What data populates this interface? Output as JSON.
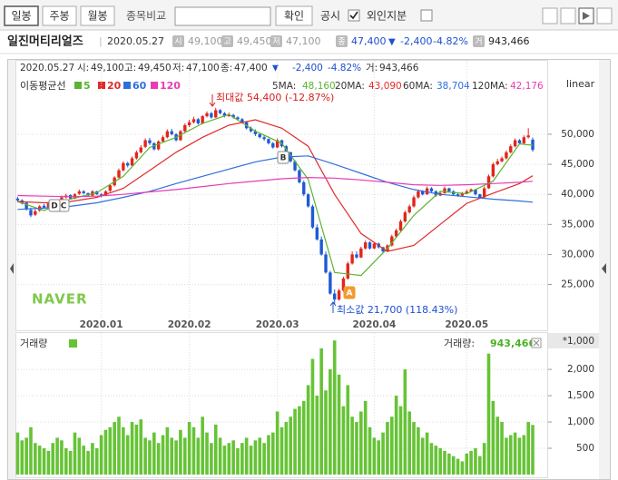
{
  "toolbar": {
    "buttons": [
      "일봉",
      "주봉",
      "월봉"
    ],
    "compare_label": "종목비교",
    "confirm": "확인",
    "disclosure": "공시",
    "foreign": "외인지분"
  },
  "info": {
    "name": "일진머티리얼즈",
    "date": "2020.05.27",
    "items": [
      {
        "icon": "시",
        "value": "49,100"
      },
      {
        "icon": "고",
        "value": "49,450"
      },
      {
        "icon": "저",
        "value": "47,100"
      },
      {
        "icon": "종",
        "value": "47,400"
      }
    ],
    "sign": "▼",
    "change": "-2,400",
    "rate": "-4.82%",
    "volume_icon": "거",
    "volume": "943,466"
  },
  "logo": "NAVER",
  "chart_data": [
    {
      "type": "candlestick",
      "header": {
        "date": "2020.05.27",
        "items": [
          {
            "label": "시:",
            "value": "49,100"
          },
          {
            "label": "고:",
            "value": "49,450"
          },
          {
            "label": "저:",
            "value": "47,100"
          },
          {
            "label": "종:",
            "value": "47,400"
          }
        ],
        "sign": "▼",
        "change": "-2,400",
        "rate": "-4.82%",
        "volume_label": "거:",
        "volume": "943,466"
      },
      "legend_title": "이동평균선",
      "scale_label": "linear",
      "up_color": "#e3251b",
      "down_color": "#1e5ad6",
      "grid": true,
      "xlim": [
        -0.5,
        120.5
      ],
      "xticks": [
        {
          "value": 19,
          "label": "2020.01"
        },
        {
          "value": 39,
          "label": "2020.02"
        },
        {
          "value": 59,
          "label": "2020.03"
        },
        {
          "value": 81,
          "label": "2020.04"
        },
        {
          "value": 102,
          "label": "2020.05"
        }
      ],
      "ylim": [
        19500,
        59500
      ],
      "yticks": [
        {
          "value": 25000,
          "label": "25,000"
        },
        {
          "value": 30000,
          "label": "30,000"
        },
        {
          "value": 35000,
          "label": "35,000"
        },
        {
          "value": 40000,
          "label": "40,000"
        },
        {
          "value": 45000,
          "label": "45,000"
        },
        {
          "value": 50000,
          "label": "50,000"
        }
      ],
      "ohlc": [
        [
          39300,
          39600,
          38700,
          39000
        ],
        [
          39000,
          39200,
          38300,
          38500
        ],
        [
          38600,
          38800,
          37300,
          37500
        ],
        [
          37400,
          37800,
          36200,
          36500
        ],
        [
          36600,
          37500,
          36400,
          37200
        ],
        [
          37300,
          38200,
          37100,
          38000
        ],
        [
          38100,
          38400,
          37600,
          37800
        ],
        [
          37700,
          38700,
          37600,
          38500
        ],
        [
          38500,
          38900,
          38100,
          38300
        ],
        [
          38300,
          39200,
          38200,
          39000
        ],
        [
          39100,
          39800,
          38900,
          39500
        ],
        [
          39500,
          40100,
          39300,
          39800
        ],
        [
          39900,
          40000,
          39100,
          39300
        ],
        [
          39300,
          40200,
          39200,
          40000
        ],
        [
          40100,
          40800,
          39900,
          40500
        ],
        [
          40500,
          40700,
          40000,
          40200
        ],
        [
          40200,
          40300,
          39600,
          39800
        ],
        [
          39800,
          40700,
          39700,
          40500
        ],
        [
          40500,
          40600,
          39900,
          40000
        ],
        [
          40000,
          40200,
          39500,
          39800
        ],
        [
          39800,
          40700,
          39700,
          40500
        ],
        [
          40600,
          41700,
          40400,
          41500
        ],
        [
          41500,
          43000,
          41300,
          42800
        ],
        [
          42800,
          44300,
          42600,
          44000
        ],
        [
          44000,
          45500,
          43800,
          45200
        ],
        [
          45200,
          45400,
          44500,
          44800
        ],
        [
          44800,
          46300,
          44700,
          46000
        ],
        [
          46000,
          47300,
          45800,
          47000
        ],
        [
          47000,
          48200,
          46800,
          47800
        ],
        [
          47900,
          49300,
          47700,
          49000
        ],
        [
          49000,
          49400,
          48200,
          48500
        ],
        [
          48500,
          48700,
          47300,
          47500
        ],
        [
          47500,
          49000,
          47300,
          48800
        ],
        [
          48800,
          49800,
          48600,
          49500
        ],
        [
          49500,
          50800,
          49300,
          50500
        ],
        [
          50500,
          50900,
          49800,
          50000
        ],
        [
          50000,
          50200,
          48800,
          49000
        ],
        [
          49000,
          50700,
          48900,
          50500
        ],
        [
          50500,
          51800,
          50300,
          51500
        ],
        [
          51500,
          52400,
          51200,
          52000
        ],
        [
          52000,
          52900,
          51800,
          52500
        ],
        [
          52500,
          52700,
          51600,
          51800
        ],
        [
          51800,
          53200,
          51700,
          53000
        ],
        [
          53000,
          53800,
          52800,
          53500
        ],
        [
          53500,
          53700,
          52600,
          52800
        ],
        [
          52800,
          54400,
          52700,
          54000
        ],
        [
          54000,
          54200,
          53300,
          53500
        ],
        [
          53500,
          53700,
          52800,
          53000
        ],
        [
          53000,
          53600,
          52900,
          53200
        ],
        [
          53200,
          53400,
          52600,
          52800
        ],
        [
          52800,
          53000,
          52300,
          52500
        ],
        [
          52500,
          52700,
          51800,
          52000
        ],
        [
          52000,
          52100,
          50800,
          51000
        ],
        [
          51000,
          51300,
          50300,
          50500
        ],
        [
          50500,
          50800,
          49700,
          50000
        ],
        [
          50000,
          50200,
          49300,
          49500
        ],
        [
          49500,
          49800,
          48900,
          49200
        ],
        [
          49200,
          49300,
          48300,
          48500
        ],
        [
          48500,
          48700,
          47600,
          47800
        ],
        [
          47800,
          49300,
          47700,
          49000
        ],
        [
          49000,
          49100,
          47800,
          48000
        ],
        [
          48000,
          48200,
          46800,
          47000
        ],
        [
          47000,
          47100,
          45300,
          45500
        ],
        [
          45500,
          45700,
          43800,
          44000
        ],
        [
          44000,
          44200,
          41800,
          42000
        ],
        [
          42000,
          42300,
          39700,
          40000
        ],
        [
          40000,
          40200,
          37800,
          38000
        ],
        [
          38000,
          38300,
          34300,
          34500
        ],
        [
          34500,
          35000,
          32300,
          32500
        ],
        [
          32500,
          33000,
          29800,
          30000
        ],
        [
          30000,
          30500,
          26800,
          27000
        ],
        [
          27000,
          27300,
          23300,
          23500
        ],
        [
          23500,
          24200,
          21700,
          22500
        ],
        [
          22500,
          24300,
          22300,
          24000
        ],
        [
          24000,
          26300,
          23800,
          26000
        ],
        [
          26000,
          28800,
          25800,
          28500
        ],
        [
          28500,
          30500,
          28300,
          30000
        ],
        [
          30000,
          30500,
          29300,
          29500
        ],
        [
          29500,
          31300,
          29400,
          31000
        ],
        [
          31000,
          32300,
          30800,
          32000
        ],
        [
          32000,
          32200,
          30800,
          31000
        ],
        [
          31000,
          32000,
          30900,
          31800
        ],
        [
          31800,
          32000,
          31000,
          31200
        ],
        [
          31200,
          31300,
          30300,
          30500
        ],
        [
          30500,
          31700,
          30400,
          31500
        ],
        [
          31500,
          33300,
          31300,
          33000
        ],
        [
          33000,
          34300,
          32800,
          34000
        ],
        [
          34000,
          35800,
          33800,
          35500
        ],
        [
          35500,
          37300,
          35300,
          37000
        ],
        [
          37000,
          38300,
          36800,
          38000
        ],
        [
          38000,
          39800,
          37800,
          39500
        ],
        [
          39500,
          40800,
          39300,
          40500
        ],
        [
          40500,
          40700,
          39800,
          40000
        ],
        [
          40000,
          41300,
          39900,
          41000
        ],
        [
          41000,
          41200,
          40300,
          40500
        ],
        [
          40500,
          40700,
          39600,
          39800
        ],
        [
          39800,
          40500,
          39700,
          40200
        ],
        [
          40200,
          41300,
          40100,
          41000
        ],
        [
          41000,
          41100,
          40300,
          40500
        ],
        [
          40500,
          40700,
          39800,
          40000
        ],
        [
          40000,
          40200,
          39600,
          39800
        ],
        [
          39800,
          40400,
          39700,
          40200
        ],
        [
          40200,
          40800,
          40100,
          40500
        ],
        [
          40500,
          41000,
          40400,
          40800
        ],
        [
          40800,
          40900,
          39800,
          40000
        ],
        [
          40000,
          40100,
          39300,
          39500
        ],
        [
          39500,
          41300,
          39400,
          41000
        ],
        [
          41000,
          43300,
          40900,
          43000
        ],
        [
          43000,
          45300,
          42800,
          45000
        ],
        [
          45000,
          45900,
          44800,
          45500
        ],
        [
          45500,
          46300,
          45300,
          46000
        ],
        [
          46000,
          47300,
          45800,
          47000
        ],
        [
          47000,
          48300,
          46800,
          48000
        ],
        [
          48000,
          49300,
          47800,
          49000
        ],
        [
          49000,
          49200,
          48300,
          48500
        ],
        [
          48500,
          49800,
          48300,
          49500
        ],
        [
          49500,
          51000,
          49300,
          49800
        ],
        [
          49100,
          49450,
          47100,
          47400
        ]
      ],
      "series": [
        {
          "name": "5",
          "color": "#5bb431",
          "readout_label": "5MA:",
          "readout": "48,160",
          "x": [
            0,
            6,
            12,
            18,
            24,
            30,
            36,
            42,
            48,
            54,
            60,
            66,
            72,
            78,
            84,
            90,
            96,
            102,
            108,
            114,
            117
          ],
          "values": [
            38800,
            37300,
            39200,
            40300,
            43000,
            47800,
            49500,
            51800,
            53300,
            50500,
            48500,
            42500,
            27000,
            26500,
            31000,
            36500,
            40500,
            40100,
            42200,
            48400,
            48160
          ]
        },
        {
          "name": "20",
          "color": "#e02b2b",
          "readout_label": "20MA:",
          "readout": "43,090",
          "x": [
            0,
            6,
            12,
            18,
            24,
            30,
            36,
            42,
            48,
            54,
            60,
            66,
            72,
            78,
            84,
            90,
            96,
            102,
            108,
            114,
            117
          ],
          "values": [
            38800,
            38600,
            38800,
            39500,
            41000,
            44000,
            47000,
            49500,
            51500,
            52400,
            51000,
            48000,
            40000,
            33500,
            30500,
            31500,
            35000,
            38500,
            40200,
            41800,
            43090
          ]
        },
        {
          "name": "60",
          "color": "#2f6fdc",
          "readout_label": "60MA:",
          "readout": "38,704",
          "x": [
            0,
            6,
            12,
            18,
            24,
            30,
            36,
            42,
            48,
            54,
            60,
            66,
            72,
            78,
            84,
            90,
            96,
            102,
            108,
            114,
            117
          ],
          "values": [
            37500,
            37700,
            38000,
            38600,
            39500,
            40500,
            41800,
            43000,
            44200,
            45400,
            46200,
            46400,
            45000,
            43500,
            42000,
            40800,
            40000,
            39600,
            39200,
            38900,
            38704
          ]
        },
        {
          "name": "120",
          "color": "#e83cb4",
          "readout_label": "120MA:",
          "readout": "42,176",
          "x": [
            0,
            6,
            12,
            18,
            24,
            30,
            36,
            42,
            48,
            54,
            60,
            66,
            72,
            78,
            84,
            90,
            96,
            102,
            108,
            114,
            117
          ],
          "values": [
            39800,
            39700,
            39600,
            39700,
            40000,
            40400,
            40800,
            41300,
            41800,
            42200,
            42600,
            42800,
            42700,
            42400,
            42000,
            41600,
            41500,
            41600,
            41800,
            42000,
            42176
          ]
        }
      ],
      "annotations": [
        "최대값 54,400 (-12.87%)",
        "최소값 21,700 (118.43%)"
      ],
      "markers": [
        "A",
        "B",
        "C",
        "D"
      ]
    },
    {
      "type": "bar",
      "title": "거래량",
      "readout_label": "거래량:",
      "readout": "943,466",
      "unit": "*1,000",
      "color": "#66c336",
      "grid": true,
      "xlim": [
        -0.5,
        120.5
      ],
      "ylim": [
        0,
        2640
      ],
      "yticks": [
        500,
        {
          "value": 1000,
          "label": "1,000"
        },
        {
          "value": 1500,
          "label": "1,500"
        },
        {
          "value": 2000,
          "label": "2,000"
        }
      ],
      "values": [
        800,
        650,
        700,
        900,
        600,
        550,
        500,
        450,
        600,
        700,
        650,
        500,
        450,
        800,
        700,
        550,
        450,
        600,
        500,
        750,
        850,
        900,
        1000,
        1100,
        900,
        750,
        1000,
        950,
        1050,
        700,
        650,
        800,
        600,
        750,
        900,
        700,
        650,
        850,
        700,
        1000,
        900,
        700,
        1100,
        800,
        600,
        950,
        700,
        550,
        600,
        650,
        500,
        600,
        700,
        550,
        650,
        700,
        600,
        750,
        800,
        1200,
        900,
        1000,
        1100,
        1250,
        1300,
        1400,
        1700,
        2200,
        1500,
        2400,
        1600,
        2000,
        2550,
        1900,
        1300,
        1700,
        1100,
        1000,
        1200,
        1400,
        900,
        700,
        650,
        800,
        1000,
        1100,
        1500,
        1300,
        2000,
        1200,
        1000,
        900,
        700,
        800,
        600,
        550,
        500,
        450,
        400,
        350,
        300,
        250,
        400,
        450,
        500,
        350,
        600,
        2300,
        1400,
        1100,
        1000,
        700,
        750,
        800,
        700,
        750,
        1000,
        943.466
      ]
    }
  ]
}
